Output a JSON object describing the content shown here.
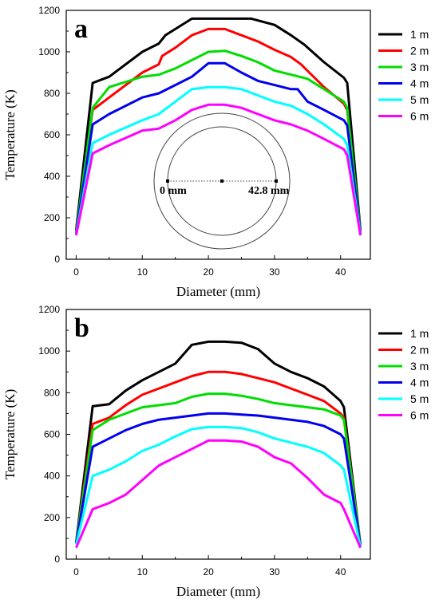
{
  "chart_data": [
    {
      "type": "line",
      "panel_label": "a",
      "xlabel": "Diameter (mm)",
      "ylabel": "Temperature (K)",
      "xlim": [
        -1.5,
        44.5
      ],
      "ylim": [
        0,
        1200
      ],
      "xticks": [
        0,
        10,
        20,
        30,
        40
      ],
      "yticks": [
        0,
        200,
        400,
        600,
        800,
        1000,
        1200
      ],
      "grid": false,
      "legend_position": "right",
      "inset": {
        "left_label": "0 mm",
        "right_label": "42.8 mm"
      },
      "series": [
        {
          "name": "1 m",
          "color": "#000000",
          "x": [
            0,
            2.5,
            5,
            10,
            12.5,
            13.5,
            15,
            17.5,
            20,
            22.5,
            25,
            26.5,
            30,
            32.5,
            34.5,
            37.5,
            40.5,
            41,
            43
          ],
          "y": [
            140,
            850,
            880,
            1000,
            1040,
            1080,
            1110,
            1160,
            1160,
            1160,
            1160,
            1160,
            1130,
            1080,
            1035,
            950,
            875,
            850,
            140
          ]
        },
        {
          "name": "2 m",
          "color": "#ff0000",
          "x": [
            0,
            2.5,
            5,
            10,
            12.5,
            13,
            15,
            17.5,
            20,
            22.5,
            25,
            27.5,
            30,
            32.5,
            34,
            37.5,
            40.5,
            41,
            43
          ],
          "y": [
            130,
            720,
            780,
            900,
            940,
            980,
            1020,
            1080,
            1110,
            1110,
            1080,
            1050,
            1010,
            975,
            940,
            830,
            750,
            720,
            130
          ]
        },
        {
          "name": "3 m",
          "color": "#00dd00",
          "x": [
            0,
            2.5,
            5,
            10,
            12.5,
            15,
            17.5,
            20,
            22.5,
            25,
            27.5,
            30,
            32.5,
            35,
            37.5,
            40.5,
            41,
            43
          ],
          "y": [
            130,
            730,
            830,
            880,
            890,
            920,
            960,
            1000,
            1005,
            980,
            950,
            910,
            890,
            870,
            820,
            760,
            730,
            130
          ]
        },
        {
          "name": "4 m",
          "color": "#0000ee",
          "x": [
            0,
            2.5,
            5,
            10,
            12.5,
            15,
            17.5,
            20,
            22.5,
            25,
            27.5,
            30,
            32.5,
            33.5,
            35,
            37.5,
            40.5,
            41,
            43
          ],
          "y": [
            125,
            650,
            700,
            780,
            800,
            840,
            880,
            945,
            945,
            900,
            860,
            840,
            820,
            820,
            760,
            720,
            670,
            645,
            125
          ]
        },
        {
          "name": "5 m",
          "color": "#00ffff",
          "x": [
            0,
            2.5,
            5,
            10,
            12.5,
            15,
            17.5,
            20,
            22.5,
            25,
            27.5,
            30,
            32.5,
            35,
            37.5,
            40.5,
            41,
            43
          ],
          "y": [
            120,
            560,
            600,
            670,
            700,
            760,
            820,
            830,
            830,
            820,
            790,
            760,
            740,
            700,
            650,
            580,
            550,
            120
          ]
        },
        {
          "name": "6 m",
          "color": "#ff00ff",
          "x": [
            0,
            2.5,
            5,
            10,
            12.5,
            15,
            17.5,
            20,
            22.5,
            25,
            27.5,
            30,
            32.5,
            35,
            37.5,
            40.5,
            41,
            43
          ],
          "y": [
            115,
            510,
            550,
            620,
            630,
            670,
            720,
            745,
            745,
            730,
            700,
            670,
            650,
            620,
            580,
            530,
            500,
            115
          ]
        }
      ]
    },
    {
      "type": "line",
      "panel_label": "b",
      "xlabel": "Diameter (mm)",
      "ylabel": "Temperature (K)",
      "xlim": [
        -1.5,
        44.5
      ],
      "ylim": [
        0,
        1200
      ],
      "xticks": [
        0,
        10,
        20,
        30,
        40
      ],
      "yticks": [
        0,
        200,
        400,
        600,
        800,
        1000,
        1200
      ],
      "grid": false,
      "legend_position": "right",
      "series": [
        {
          "name": "1 m",
          "color": "#000000",
          "x": [
            0,
            2.5,
            5,
            7.5,
            10,
            12.5,
            15,
            17.5,
            20,
            22.5,
            25,
            27.5,
            30,
            32.5,
            35,
            37.5,
            40,
            40.5,
            43
          ],
          "y": [
            80,
            735,
            745,
            810,
            860,
            900,
            940,
            1030,
            1045,
            1045,
            1040,
            1010,
            940,
            900,
            870,
            830,
            760,
            730,
            70
          ]
        },
        {
          "name": "2 m",
          "color": "#ff0000",
          "x": [
            0,
            2.5,
            5,
            7.5,
            10,
            12.5,
            15,
            17.5,
            20,
            22.5,
            25,
            27.5,
            30,
            32.5,
            35,
            37.5,
            40,
            40.5,
            43
          ],
          "y": [
            80,
            650,
            680,
            740,
            790,
            820,
            850,
            880,
            900,
            900,
            890,
            870,
            850,
            820,
            790,
            760,
            700,
            680,
            70
          ]
        },
        {
          "name": "3 m",
          "color": "#00dd00",
          "x": [
            0,
            2.5,
            5,
            7.5,
            10,
            12.5,
            15,
            17.5,
            20,
            22.5,
            25,
            27.5,
            30,
            32.5,
            35,
            37.5,
            40,
            40.5,
            43
          ],
          "y": [
            80,
            620,
            670,
            700,
            730,
            740,
            750,
            780,
            795,
            795,
            785,
            770,
            750,
            740,
            730,
            720,
            690,
            670,
            70
          ]
        },
        {
          "name": "4 m",
          "color": "#0000ee",
          "x": [
            0,
            2.5,
            5,
            7.5,
            10,
            12.5,
            15,
            17.5,
            20,
            22.5,
            25,
            27.5,
            30,
            32.5,
            35,
            37.5,
            40,
            40.5,
            43
          ],
          "y": [
            75,
            540,
            580,
            620,
            650,
            670,
            680,
            690,
            700,
            700,
            695,
            690,
            680,
            670,
            660,
            640,
            600,
            580,
            65
          ]
        },
        {
          "name": "5 m",
          "color": "#00ffff",
          "x": [
            0,
            2.5,
            5,
            7.5,
            10,
            12.5,
            15,
            17.5,
            20,
            22.5,
            25,
            27.5,
            30,
            32.5,
            35,
            37.5,
            40,
            40.5,
            43
          ],
          "y": [
            70,
            400,
            430,
            470,
            520,
            550,
            590,
            625,
            635,
            635,
            630,
            610,
            580,
            560,
            540,
            510,
            450,
            430,
            60
          ]
        },
        {
          "name": "6 m",
          "color": "#ff00ff",
          "x": [
            0,
            2.5,
            5,
            7.5,
            10,
            12.5,
            15,
            17.5,
            20,
            22.5,
            25,
            27.5,
            30,
            32.5,
            35,
            37.5,
            40,
            40.5,
            43
          ],
          "y": [
            55,
            240,
            270,
            310,
            380,
            450,
            490,
            530,
            570,
            570,
            565,
            540,
            490,
            460,
            390,
            310,
            270,
            240,
            55
          ]
        }
      ]
    }
  ]
}
